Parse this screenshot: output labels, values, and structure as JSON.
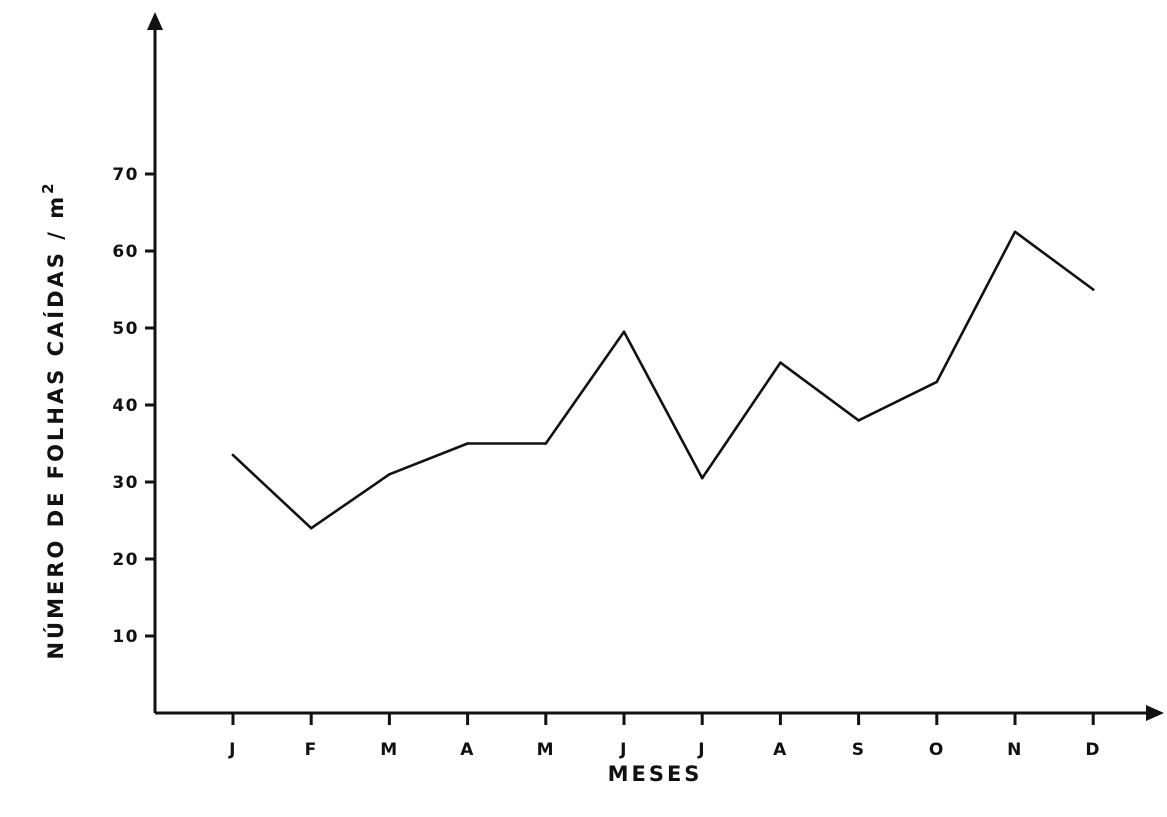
{
  "chart_data": {
    "type": "line",
    "title": "",
    "xlabel": "MESES",
    "ylabel": "NÚMERO DE FOLHAS CAÍDAS / m",
    "ylabel_superscript": "2",
    "categories": [
      "J",
      "F",
      "M",
      "A",
      "M",
      "J",
      "J",
      "A",
      "S",
      "O",
      "N",
      "D"
    ],
    "yticks": [
      "10",
      "20",
      "30",
      "40",
      "50",
      "60",
      "70"
    ],
    "ylim": [
      0,
      85
    ],
    "grid": false,
    "legend": "none",
    "line_color": "#111111",
    "series": [
      {
        "values": [
          33.5,
          24,
          31,
          35,
          35,
          49.5,
          30.5,
          45.5,
          38,
          43,
          62.5,
          55
        ]
      }
    ]
  }
}
